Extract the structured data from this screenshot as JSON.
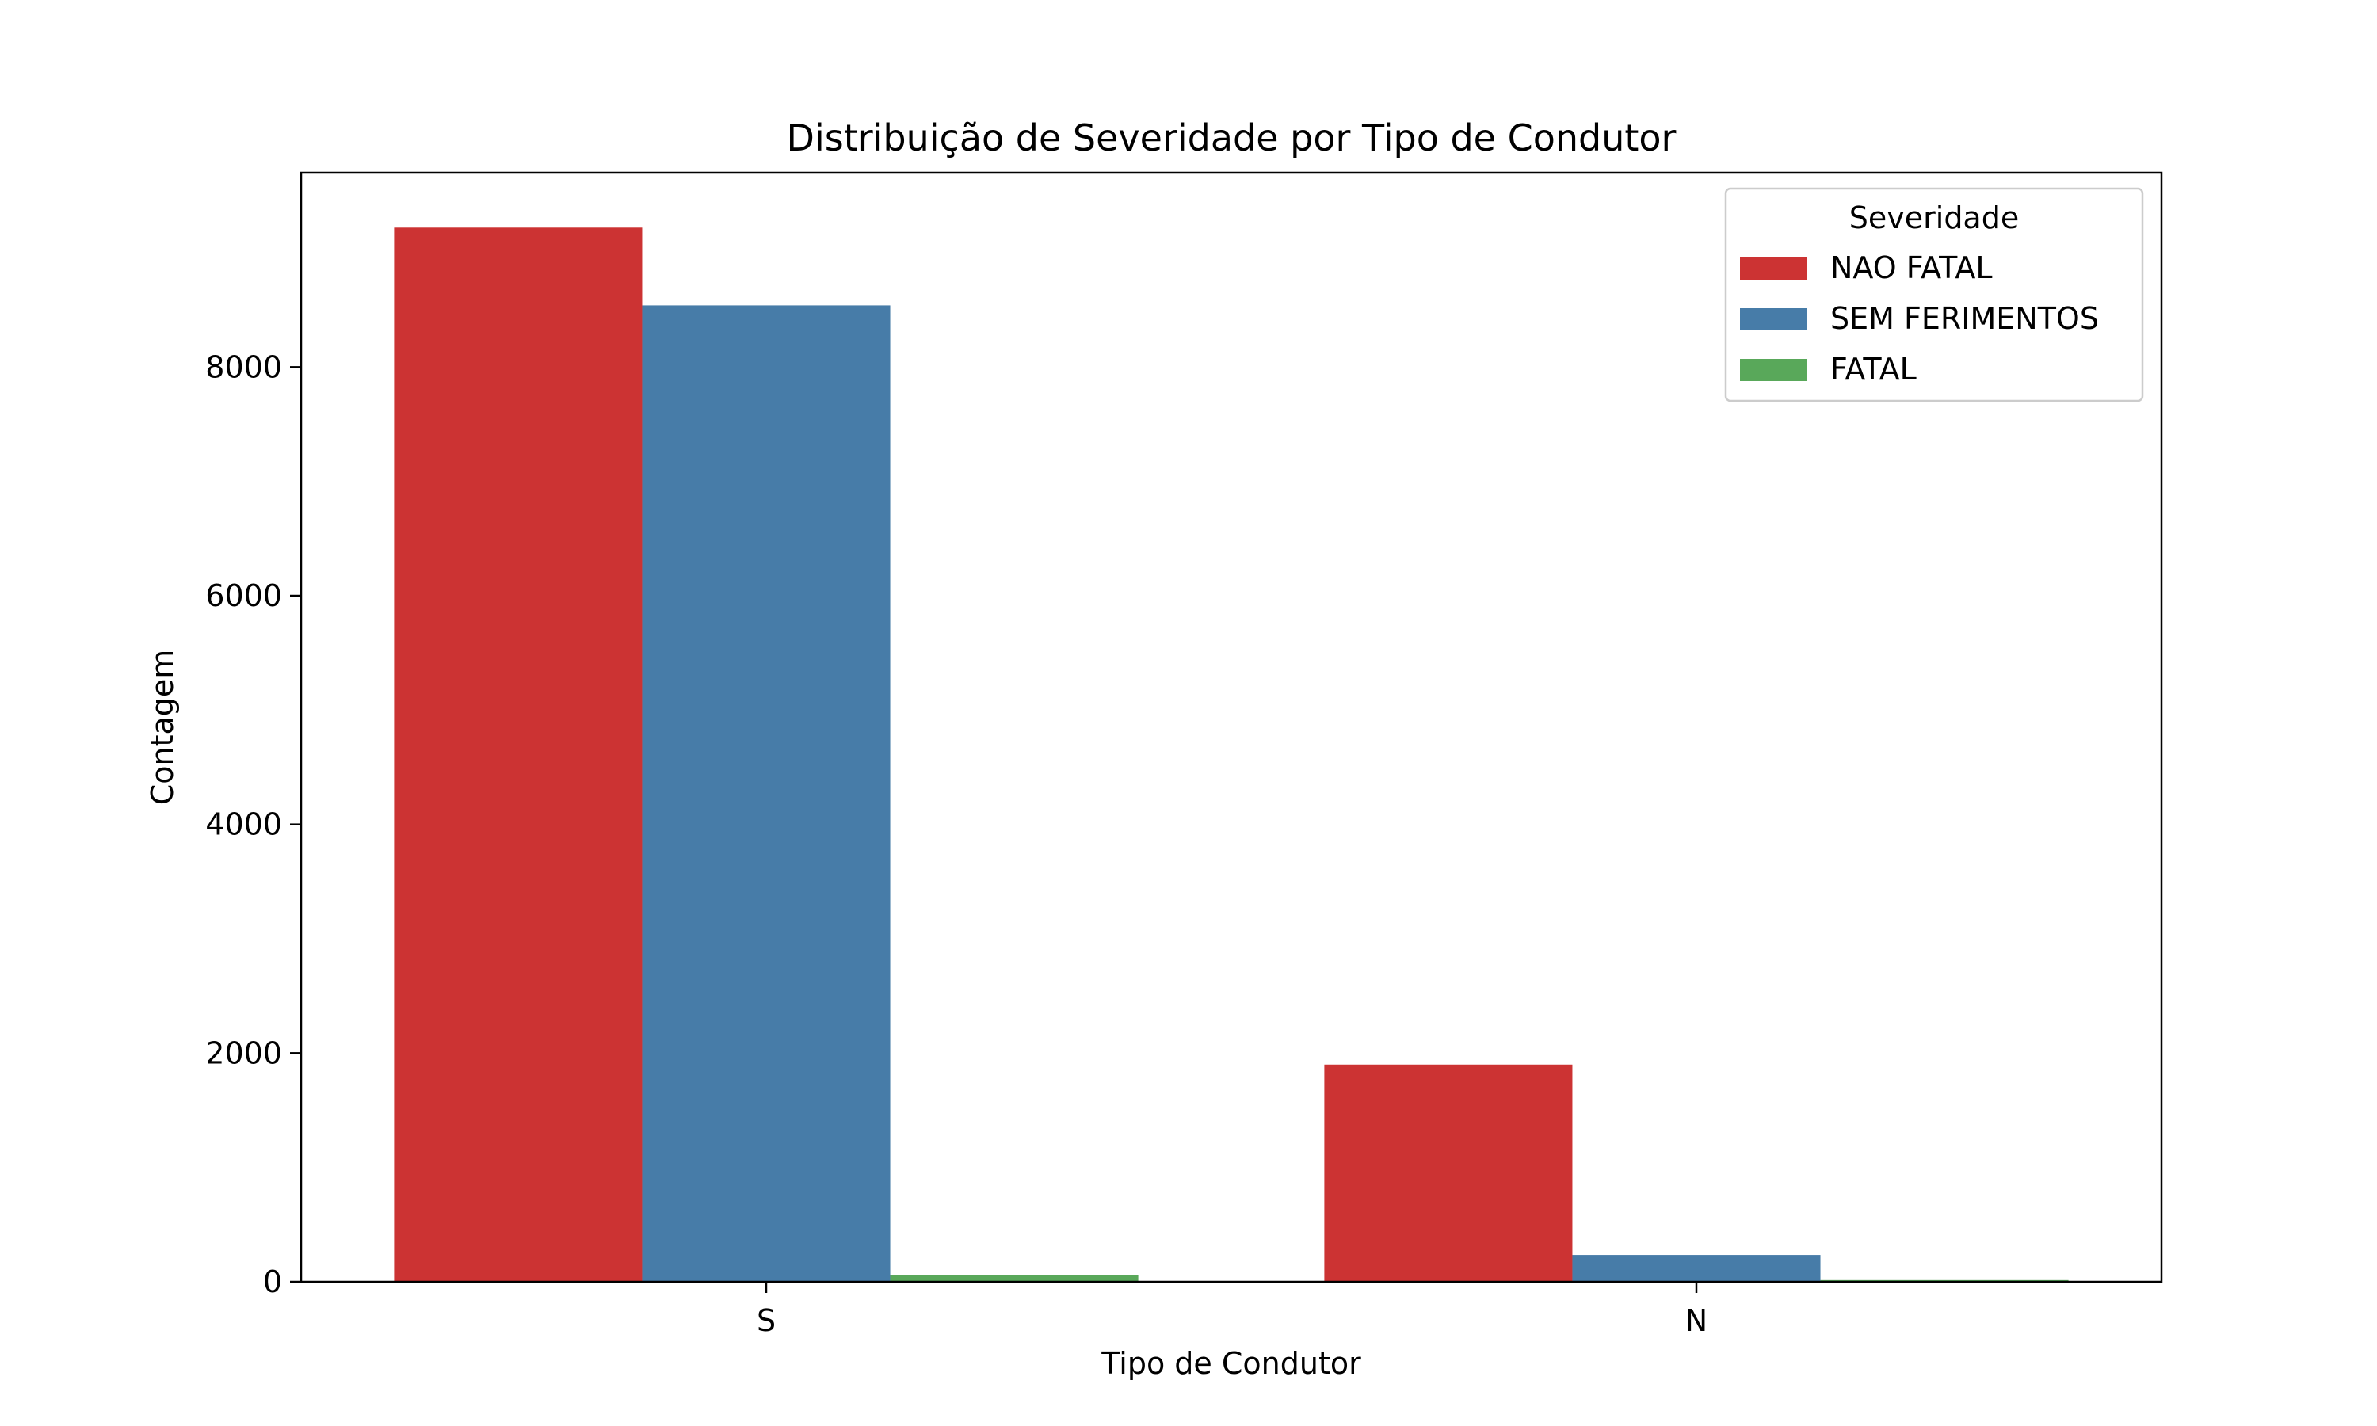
{
  "chart_data": {
    "type": "bar",
    "title": "Distribuição de Severidade por Tipo de Condutor",
    "xlabel": "Tipo de Condutor",
    "ylabel": "Contagem",
    "categories": [
      "S",
      "N"
    ],
    "series": [
      {
        "name": "NAO FATAL",
        "color": "#cc3333",
        "values": [
          9220,
          1900
        ]
      },
      {
        "name": "SEM FERIMENTOS",
        "color": "#477ca8",
        "values": [
          8540,
          235
        ]
      },
      {
        "name": "FATAL",
        "color": "#59a85a",
        "values": [
          60,
          15
        ]
      }
    ],
    "ylim": [
      0,
      9700
    ],
    "yticks": [
      0,
      2000,
      4000,
      6000,
      8000
    ],
    "legend": {
      "title": "Severidade",
      "placement": "top-right"
    },
    "grid": false
  }
}
